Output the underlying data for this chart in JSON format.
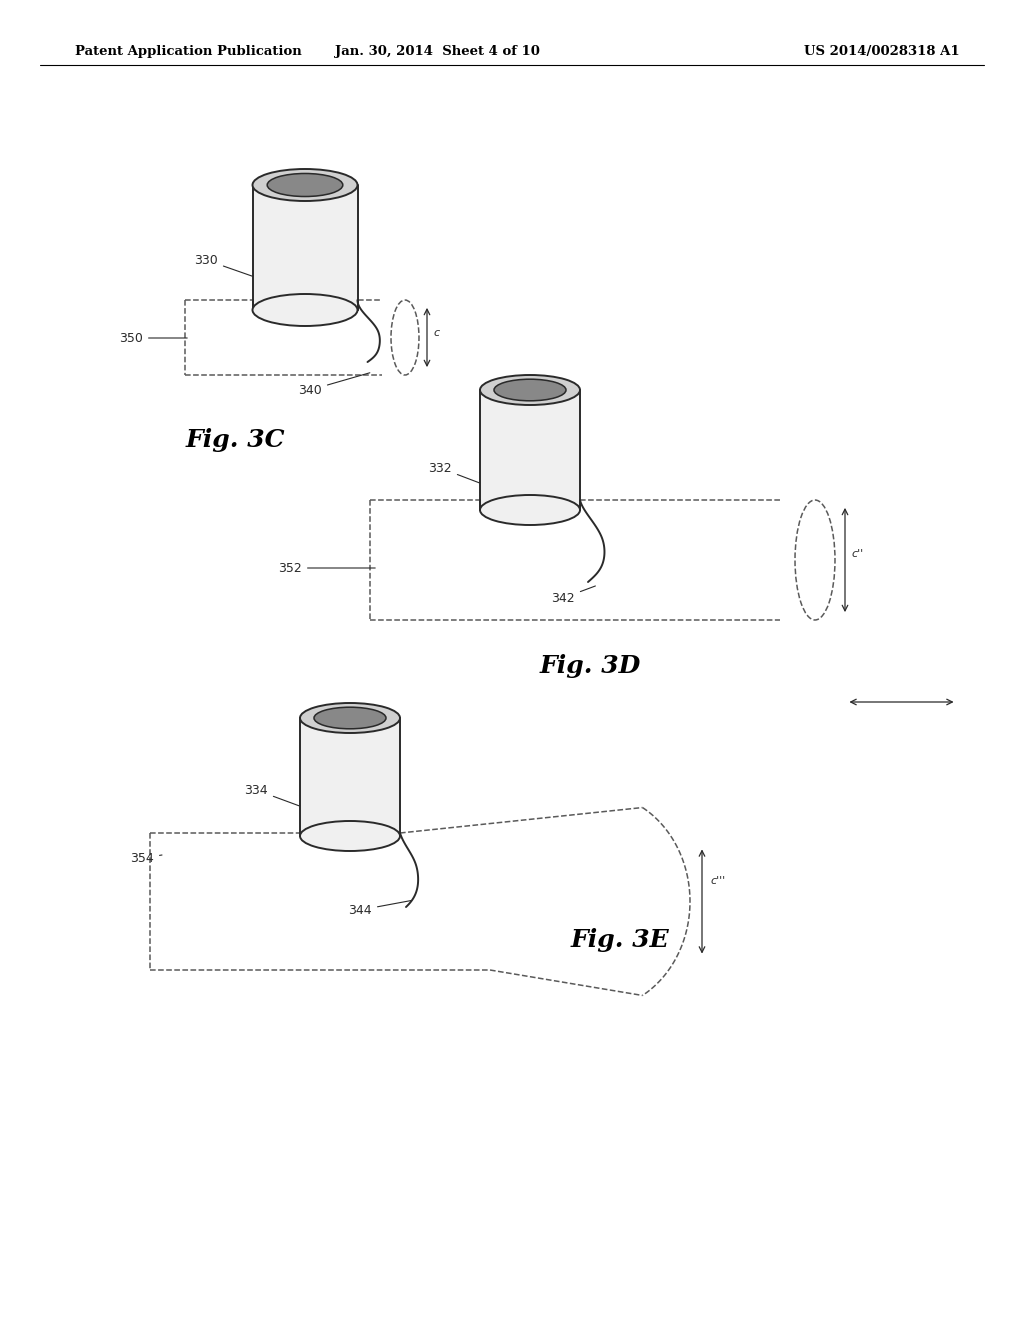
{
  "background_color": "#ffffff",
  "header_left": "Patent Application Publication",
  "header_center": "Jan. 30, 2014  Sheet 4 of 10",
  "header_right": "US 2014/0028318 A1",
  "fig3c_label": "Fig. 3C",
  "fig3d_label": "Fig. 3D",
  "fig3e_label": "Fig. 3E",
  "line_color": "#2a2a2a",
  "dash_color": "#5a5a5a",
  "fill_light": "#f0f0f0",
  "fill_dark": "#d0d0d0"
}
